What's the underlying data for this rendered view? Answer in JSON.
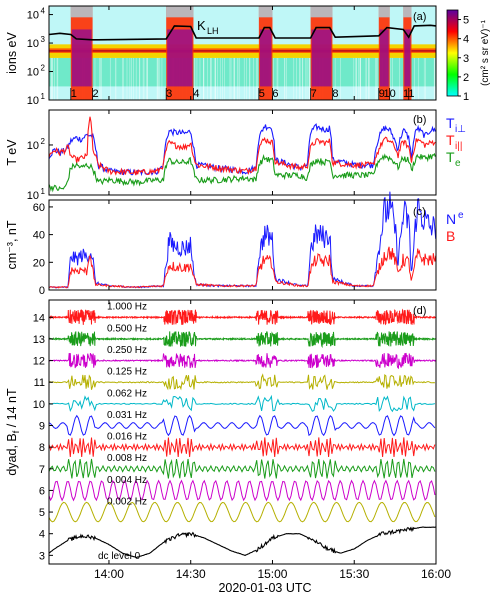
{
  "xaxis": {
    "label": "2020-01-03 UTC",
    "ticks": [
      {
        "t": 40,
        "label": "14:00"
      },
      {
        "t": 70,
        "label": "14:30"
      },
      {
        "t": 100,
        "label": "15:00"
      },
      {
        "t": 130,
        "label": "15:30"
      },
      {
        "t": 160,
        "label": "16:00"
      }
    ],
    "range_minutes": [
      18,
      160
    ]
  },
  "colors": {
    "blue": "#1a1aff",
    "red": "#ff1a1a",
    "green": "#1a9c1a",
    "magenta": "#cc00cc",
    "olive": "#b5b000",
    "cyan": "#00b8c8",
    "black": "#000000"
  },
  "chart_data": [
    {
      "type": "heatmap",
      "panel_label": "(a)",
      "ylabel": "ions eV",
      "yscale": "log",
      "ylim": [
        10,
        20000
      ],
      "yticks": [
        "10^1",
        "10^2",
        "10^3",
        "10^4"
      ],
      "overlay_label": "K",
      "overlay_label_sub": "LH",
      "colorbar": {
        "label": "(cm² s sr eV)⁻¹",
        "ticks": [
          1,
          2,
          3,
          4,
          5
        ],
        "range": [
          1,
          5.5
        ]
      },
      "event_markers": [
        {
          "label": "1",
          "t": 26
        },
        {
          "label": "2",
          "t": 34
        },
        {
          "label": "3",
          "t": 61
        },
        {
          "label": "4",
          "t": 71
        },
        {
          "label": "5",
          "t": 95
        },
        {
          "label": "6",
          "t": 100
        },
        {
          "label": "7",
          "t": 114
        },
        {
          "label": "8",
          "t": 122
        },
        {
          "label": "9",
          "t": 139
        },
        {
          "label": "10",
          "t": 143
        },
        {
          "label": "11",
          "t": 150
        }
      ],
      "klh_line": {
        "t": [
          18,
          22,
          26,
          28,
          34,
          36,
          61,
          64,
          70,
          72,
          95,
          97,
          99,
          101,
          114,
          116,
          121,
          123,
          139,
          142,
          148,
          150,
          152,
          158,
          160
        ],
        "ev": [
          2000,
          2200,
          2000,
          1400,
          1300,
          1300,
          1400,
          4000,
          3800,
          1500,
          1500,
          3500,
          3500,
          1500,
          1500,
          3500,
          3500,
          1600,
          1800,
          3500,
          3000,
          1600,
          4000,
          4200,
          4000
        ]
      }
    },
    {
      "type": "line",
      "panel_label": "(b)",
      "ylabel": "T eV",
      "yscale": "log",
      "ylim": [
        10,
        500
      ],
      "yticks": [
        "10^1",
        "10^2"
      ],
      "series": [
        {
          "name": "T",
          "sub": "i⊥",
          "color": "blue",
          "t": [
            18,
            20,
            22,
            24,
            25,
            26,
            28,
            30,
            32,
            34,
            35,
            36,
            40,
            50,
            58,
            60,
            61,
            62,
            64,
            68,
            70,
            71,
            72,
            80,
            90,
            94,
            95,
            97,
            99,
            100,
            101,
            110,
            113,
            114,
            116,
            120,
            121,
            122,
            130,
            137,
            139,
            141,
            143,
            145,
            146,
            148,
            150,
            151,
            153,
            156,
            158,
            160
          ],
          "v": [
            60,
            80,
            70,
            80,
            90,
            120,
            140,
            130,
            160,
            150,
            90,
            40,
            30,
            28,
            30,
            40,
            120,
            190,
            180,
            170,
            190,
            90,
            40,
            35,
            30,
            35,
            130,
            240,
            230,
            200,
            50,
            35,
            40,
            180,
            230,
            200,
            230,
            50,
            40,
            40,
            140,
            220,
            200,
            120,
            80,
            200,
            140,
            50,
            220,
            150,
            200,
            200
          ]
        },
        {
          "name": "T",
          "sub": "i||",
          "color": "red",
          "t": [
            18,
            20,
            22,
            24,
            25,
            26,
            28,
            30,
            32,
            33,
            34,
            35,
            36,
            40,
            50,
            58,
            60,
            61,
            62,
            64,
            68,
            70,
            71,
            72,
            80,
            90,
            94,
            95,
            97,
            99,
            100,
            101,
            110,
            113,
            114,
            116,
            120,
            121,
            122,
            130,
            137,
            139,
            141,
            143,
            145,
            146,
            148,
            150,
            151,
            153,
            156,
            158,
            160
          ],
          "v": [
            60,
            80,
            70,
            80,
            90,
            60,
            50,
            55,
            60,
            400,
            80,
            60,
            40,
            30,
            28,
            30,
            40,
            80,
            110,
            100,
            90,
            110,
            60,
            40,
            35,
            30,
            35,
            90,
            130,
            120,
            110,
            45,
            35,
            40,
            90,
            120,
            110,
            120,
            45,
            40,
            40,
            80,
            130,
            120,
            90,
            60,
            120,
            90,
            45,
            130,
            100,
            110,
            120
          ]
        },
        {
          "name": "T",
          "sub": "e",
          "color": "green",
          "t": [
            18,
            20,
            22,
            24,
            25,
            26,
            28,
            30,
            32,
            34,
            35,
            36,
            40,
            50,
            58,
            60,
            61,
            62,
            64,
            68,
            70,
            71,
            72,
            80,
            90,
            94,
            95,
            97,
            99,
            100,
            101,
            110,
            113,
            114,
            116,
            120,
            121,
            122,
            130,
            137,
            139,
            141,
            143,
            145,
            146,
            148,
            150,
            151,
            153,
            156,
            158,
            160
          ],
          "v": [
            15,
            14,
            13,
            14,
            20,
            35,
            40,
            35,
            40,
            35,
            25,
            18,
            20,
            18,
            20,
            20,
            40,
            50,
            45,
            45,
            50,
            30,
            20,
            20,
            22,
            20,
            40,
            55,
            50,
            50,
            25,
            25,
            22,
            40,
            50,
            45,
            50,
            25,
            25,
            25,
            50,
            60,
            55,
            45,
            35,
            55,
            50,
            30,
            60,
            55,
            60,
            60
          ]
        }
      ],
      "legend": "right"
    },
    {
      "type": "line",
      "panel_label": "(c)",
      "ylabel": "cm⁻³, nT",
      "ylim": [
        0,
        65
      ],
      "yticks": [
        0,
        20,
        40,
        60
      ],
      "series": [
        {
          "name": "N",
          "sub": "e",
          "color": "blue",
          "t": [
            18,
            25,
            26,
            28,
            30,
            32,
            33,
            34,
            35,
            40,
            50,
            60,
            61,
            62,
            64,
            68,
            70,
            71,
            72,
            80,
            90,
            94,
            95,
            97,
            99,
            100,
            101,
            110,
            113,
            114,
            116,
            120,
            121,
            122,
            130,
            137,
            139,
            141,
            143,
            145,
            146,
            148,
            150,
            151,
            153,
            156,
            158,
            160
          ],
          "v": [
            2,
            2,
            25,
            22,
            25,
            24,
            28,
            25,
            5,
            3,
            2,
            3,
            20,
            35,
            32,
            30,
            33,
            15,
            4,
            3,
            3,
            3,
            25,
            40,
            38,
            36,
            8,
            3,
            3,
            30,
            40,
            38,
            42,
            8,
            3,
            3,
            30,
            55,
            60,
            45,
            20,
            55,
            50,
            10,
            60,
            50,
            45,
            45
          ]
        },
        {
          "name": "B",
          "sub": "",
          "color": "red",
          "t": [
            18,
            25,
            26,
            28,
            30,
            32,
            33,
            34,
            35,
            40,
            50,
            60,
            61,
            62,
            64,
            68,
            70,
            71,
            72,
            80,
            90,
            94,
            95,
            97,
            99,
            100,
            101,
            110,
            113,
            114,
            116,
            120,
            121,
            122,
            130,
            137,
            139,
            141,
            143,
            145,
            146,
            148,
            150,
            151,
            153,
            156,
            158,
            160
          ],
          "v": [
            2,
            2,
            15,
            14,
            15,
            13,
            30,
            14,
            4,
            3,
            2,
            3,
            12,
            18,
            17,
            16,
            18,
            10,
            4,
            3,
            3,
            3,
            15,
            22,
            20,
            20,
            6,
            3,
            3,
            15,
            22,
            20,
            22,
            6,
            3,
            3,
            15,
            25,
            28,
            22,
            12,
            22,
            20,
            6,
            25,
            22,
            22,
            22
          ]
        }
      ],
      "legend": "right"
    },
    {
      "type": "line",
      "panel_label": "(d)",
      "ylabel": "dyad, B",
      "ylabel_sub": "f",
      "ylabel_tail": " / 14 nT",
      "ylim": [
        2.6,
        14.8
      ],
      "yticks": [
        3,
        4,
        5,
        6,
        7,
        8,
        9,
        10,
        11,
        12,
        13,
        14
      ],
      "channels": [
        {
          "label": "1.000 Hz",
          "offset": 14,
          "color": "red"
        },
        {
          "label": "0.500 Hz",
          "offset": 13,
          "color": "green"
        },
        {
          "label": "0.250 Hz",
          "offset": 12,
          "color": "magenta"
        },
        {
          "label": "0.125 Hz",
          "offset": 11,
          "color": "olive"
        },
        {
          "label": "0.062 Hz",
          "offset": 10,
          "color": "cyan"
        },
        {
          "label": "0.031 Hz",
          "offset": 9,
          "color": "blue"
        },
        {
          "label": "0.016 Hz",
          "offset": 8,
          "color": "red"
        },
        {
          "label": "0.008 Hz",
          "offset": 7,
          "color": "green"
        },
        {
          "label": "0.004 Hz",
          "offset": 6,
          "color": "magenta"
        },
        {
          "label": "0.002 Hz",
          "offset": 5,
          "color": "olive"
        },
        {
          "label": "dc level 0",
          "offset": 3,
          "color": "black"
        }
      ],
      "dc_level": {
        "t": [
          18,
          20,
          25,
          30,
          35,
          40,
          45,
          50,
          55,
          60,
          65,
          70,
          75,
          80,
          85,
          90,
          95,
          100,
          105,
          110,
          115,
          120,
          125,
          130,
          135,
          140,
          145,
          150,
          155,
          160
        ],
        "v": [
          3.1,
          3.3,
          3.7,
          3.9,
          3.8,
          3.5,
          3.1,
          2.9,
          3.1,
          3.6,
          3.9,
          4.0,
          3.8,
          3.5,
          3.2,
          3.0,
          3.3,
          3.8,
          4.0,
          4.0,
          3.7,
          3.3,
          3.1,
          3.3,
          3.7,
          4.0,
          4.1,
          4.2,
          4.3,
          4.3
        ]
      }
    }
  ]
}
